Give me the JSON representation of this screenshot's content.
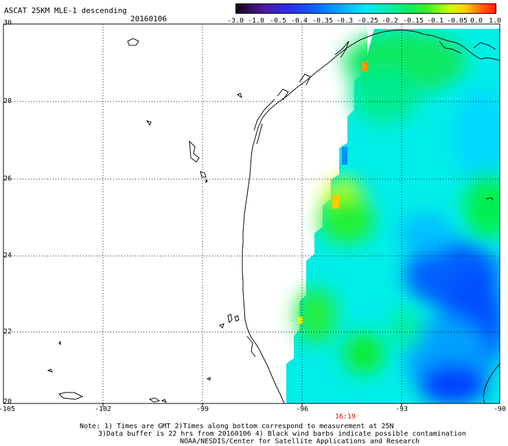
{
  "header": {
    "title": "ASCAT 25KM MLE-1 descending",
    "date": "20160106"
  },
  "colorbar": {
    "labels": [
      "-3.0",
      "-1.0",
      "-0.5",
      "-0.4",
      "-0.35",
      "-0.3",
      "-0.25",
      "-0.2",
      "-0.15",
      "-0.1",
      "-0.05",
      "0.0",
      "1.0"
    ],
    "colors": [
      "#2a0a3a",
      "#5a1aa0",
      "#3a22e0",
      "#1648ff",
      "#0a82ff",
      "#00b4ff",
      "#00f0f0",
      "#00f0a0",
      "#10e040",
      "#7aff00",
      "#e8ff00",
      "#ff9a00",
      "#ff2a00"
    ]
  },
  "axes": {
    "lat_labels": [
      "30",
      "28",
      "26",
      "24",
      "22",
      "20"
    ],
    "lon_labels": [
      "-105",
      "-102",
      "-99",
      "-96",
      "-93",
      "-90"
    ],
    "lat_range": [
      20,
      30
    ],
    "lon_range": [
      -105,
      -90
    ],
    "grid": true
  },
  "pass_time": "16:19",
  "notes": {
    "line1": "Note: 1) Times are GMT 2)Times along bottom correspond to measurement at 25N",
    "line2": "3)Data buffer is 22 hrs from 20160106 4) Black wind barbs indicate possible contamination",
    "line3": "NOAA/NESDIS/Center for Satellite Applications and Research"
  },
  "swath_colors": {
    "cyan": "#00f0ff",
    "aqua": "#00e8e0",
    "green": "#00f070",
    "bright_green": "#00ff30",
    "yellow": "#e0ff00",
    "orange": "#ff9a00",
    "blue": "#0050ff",
    "light_blue": "#00b0ff"
  }
}
